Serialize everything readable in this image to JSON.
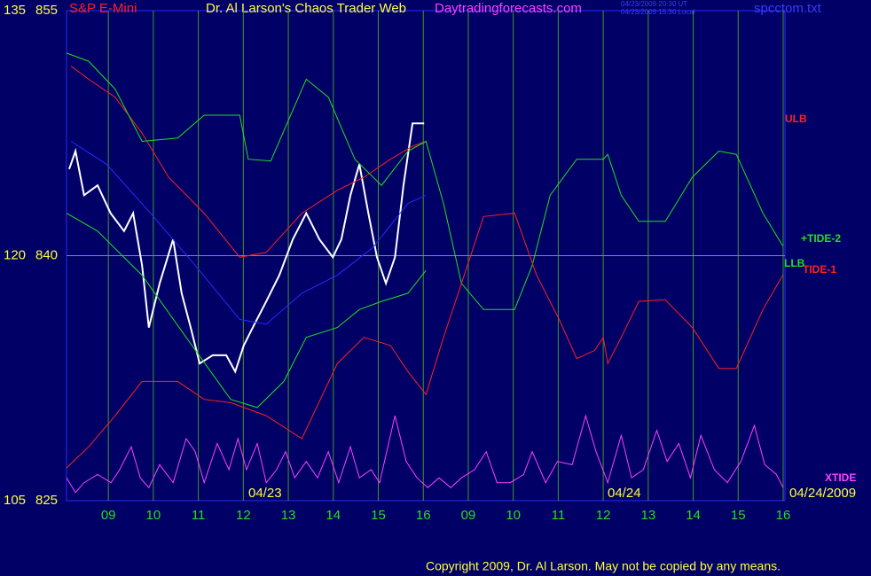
{
  "chart_data": {
    "type": "line",
    "title": "Dr. Al Larson's Chaos Trader Web",
    "instrument": "S&P E-Mini",
    "site": "Daytradingforecasts.com",
    "timestamps": [
      "04/23/2009 20:30 UT",
      "04/23/2009 15:30 Local"
    ],
    "file": "spcctom.txt",
    "copyright": "Copyright 2009, Dr. Al Larson. May not be copied by any means.",
    "annotations": [
      "04/23",
      "04/24",
      "04/24/2009"
    ],
    "xlim": [
      0.07,
      16
    ],
    "xticks": [
      {
        "value": 1,
        "label": "09"
      },
      {
        "value": 2,
        "label": "10"
      },
      {
        "value": 3,
        "label": "11"
      },
      {
        "value": 4,
        "label": "12"
      },
      {
        "value": 5,
        "label": "13"
      },
      {
        "value": 6,
        "label": "14"
      },
      {
        "value": 7,
        "label": "15"
      },
      {
        "value": 8,
        "label": "16"
      },
      {
        "value": 9,
        "label": "09"
      },
      {
        "value": 10,
        "label": "10"
      },
      {
        "value": 11,
        "label": "11"
      },
      {
        "value": 12,
        "label": "12"
      },
      {
        "value": 13,
        "label": "13"
      },
      {
        "value": 14,
        "label": "14"
      },
      {
        "value": 15,
        "label": "15"
      },
      {
        "value": 16,
        "label": "16"
      }
    ],
    "ylim": [
      825,
      855
    ],
    "yticks": [
      825,
      840,
      855
    ],
    "y2lim": [
      105,
      135
    ],
    "y2ticks": [
      105,
      120,
      135
    ],
    "grid": true,
    "series": [
      {
        "color": "#ffffff",
        "x": [
          0.13,
          0.27,
          0.46,
          0.76,
          1.05,
          1.35,
          1.55,
          1.75,
          1.9,
          2.14,
          2.44,
          2.63,
          2.83,
          3.03,
          3.32,
          3.62,
          3.82,
          4.01,
          4.21,
          4.51,
          4.8,
          5.1,
          5.4,
          5.69,
          5.99,
          6.18,
          6.38,
          6.58,
          6.78,
          6.97,
          7.17,
          7.37,
          7.56,
          7.76,
          8.02
        ],
        "values": [
          845.3,
          846.4,
          843.7,
          844.3,
          842.6,
          841.5,
          842.6,
          839.4,
          835.6,
          838.3,
          841.0,
          837.7,
          835.6,
          833.4,
          833.9,
          833.9,
          832.9,
          834.5,
          835.6,
          837.2,
          838.8,
          841.0,
          842.6,
          841.0,
          839.9,
          841.0,
          843.7,
          845.6,
          842.6,
          839.9,
          838.3,
          839.9,
          844.3,
          848.1,
          848.1
        ]
      },
      {
        "color": "#2a2aff",
        "x": [
          0.17,
          0.96,
          1.94,
          2.93,
          3.92,
          4.51,
          5.3,
          6.09,
          6.88,
          7.66,
          8.06
        ],
        "values": [
          847.0,
          845.6,
          842.6,
          839.4,
          836.1,
          835.8,
          837.7,
          838.8,
          840.5,
          843.2,
          843.7
        ]
      },
      {
        "name": "ULB",
        "color": "#ff2020",
        "x": [
          0.17,
          0.56,
          1.15,
          1.75,
          2.34,
          3.13,
          3.92,
          4.51,
          5.3,
          6.09,
          6.68,
          7.27,
          7.76,
          8.06
        ],
        "values": [
          851.6,
          850.8,
          849.7,
          847.5,
          844.8,
          842.6,
          839.9,
          840.2,
          842.6,
          844.0,
          844.8,
          845.9,
          846.7,
          847.0
        ]
      },
      {
        "name": "+TIDE-2",
        "color": "#20e020",
        "x": [
          0.07,
          0.56,
          1.15,
          1.75,
          2.54,
          3.13,
          3.92,
          4.11,
          4.61,
          5.4,
          5.89,
          6.48,
          7.07,
          7.66,
          8.06,
          8.45,
          8.85,
          9.34,
          10.03,
          10.42,
          10.82,
          11.41,
          12.0,
          12.1,
          12.4,
          12.79,
          13.38,
          13.98,
          14.57,
          14.96,
          15.55,
          15.99
        ],
        "values": [
          852.4,
          851.9,
          850.2,
          847.0,
          847.2,
          848.6,
          848.6,
          845.9,
          845.8,
          850.8,
          849.7,
          845.9,
          844.3,
          846.4,
          847.0,
          843.2,
          838.3,
          836.7,
          836.7,
          839.4,
          843.7,
          845.9,
          845.9,
          846.2,
          843.7,
          842.1,
          842.1,
          844.8,
          846.4,
          846.2,
          842.6,
          840.6
        ]
      },
      {
        "name": "LLB",
        "color": "#20e020",
        "x": [
          0.07,
          0.76,
          1.75,
          2.73,
          3.72,
          4.31,
          4.9,
          5.4,
          6.09,
          6.58,
          7.07,
          7.66,
          8.06
        ],
        "values": [
          842.6,
          841.5,
          838.8,
          835.0,
          831.2,
          830.7,
          832.3,
          835.0,
          835.6,
          836.7,
          837.2,
          837.7,
          839.1
        ]
      },
      {
        "name": "TIDE-1",
        "color": "#ff2020",
        "x": [
          0.07,
          0.56,
          1.15,
          1.75,
          2.54,
          3.13,
          3.72,
          4.51,
          5.3,
          6.09,
          6.68,
          7.27,
          7.66,
          8.06,
          8.45,
          8.85,
          9.34,
          10.03,
          10.52,
          11.02,
          11.41,
          11.81,
          12.0,
          12.1,
          12.4,
          12.79,
          13.38,
          13.98,
          14.57,
          14.96,
          15.55,
          15.99
        ],
        "values": [
          827.0,
          828.3,
          830.2,
          832.3,
          832.3,
          831.2,
          831.0,
          830.2,
          828.8,
          833.4,
          835.0,
          834.5,
          832.9,
          831.5,
          835.0,
          838.3,
          842.4,
          842.6,
          838.8,
          836.1,
          833.7,
          834.2,
          835.0,
          833.4,
          835.0,
          837.2,
          837.3,
          835.6,
          833.1,
          833.1,
          836.7,
          838.8
        ]
      },
      {
        "name": "XTIDE",
        "color": "#ff40ff",
        "axis": "y2",
        "x": [
          0.07,
          0.27,
          0.46,
          0.76,
          1.06,
          1.25,
          1.51,
          1.71,
          1.9,
          2.14,
          2.44,
          2.73,
          2.93,
          3.13,
          3.42,
          3.68,
          3.88,
          4.07,
          4.31,
          4.51,
          4.74,
          4.94,
          5.14,
          5.4,
          5.65,
          5.89,
          6.12,
          6.38,
          6.58,
          6.84,
          7.03,
          7.37,
          7.62,
          7.86,
          8.1,
          8.35,
          8.61,
          8.85,
          9.14,
          9.4,
          9.64,
          9.93,
          10.23,
          10.42,
          10.72,
          10.98,
          11.31,
          11.61,
          11.84,
          12.1,
          12.4,
          12.63,
          12.89,
          13.19,
          13.42,
          13.68,
          13.94,
          14.17,
          14.47,
          14.76,
          15.06,
          15.36,
          15.59,
          15.85,
          16.0
        ],
        "values": [
          106.4,
          105.5,
          106.1,
          106.6,
          106.1,
          106.9,
          108.3,
          106.4,
          105.8,
          107.2,
          106.1,
          108.8,
          108.0,
          106.1,
          108.5,
          106.9,
          108.8,
          106.9,
          108.5,
          106.1,
          106.9,
          108.0,
          106.4,
          107.4,
          106.4,
          108.0,
          106.1,
          108.3,
          106.4,
          106.9,
          106.1,
          110.2,
          107.4,
          106.4,
          105.8,
          106.4,
          105.8,
          106.4,
          106.9,
          108.0,
          106.1,
          106.1,
          106.6,
          108.0,
          106.1,
          107.4,
          107.2,
          110.2,
          108.0,
          106.1,
          109.0,
          106.4,
          106.9,
          109.3,
          107.4,
          108.5,
          106.4,
          109.0,
          106.9,
          106.1,
          107.4,
          109.6,
          107.2,
          106.6,
          105.8
        ]
      }
    ]
  }
}
